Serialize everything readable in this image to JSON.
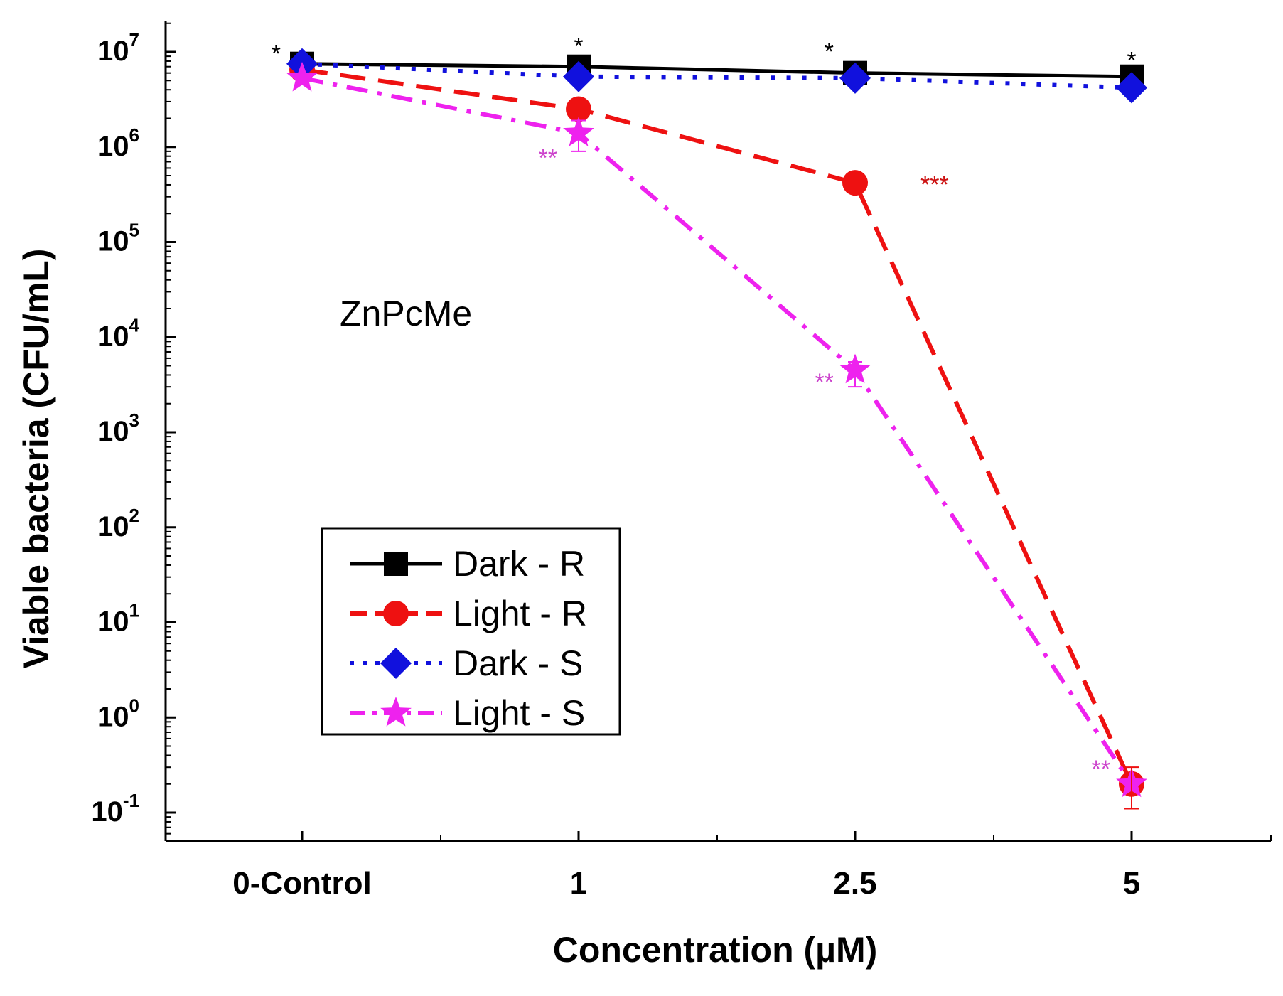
{
  "chart_data": {
    "type": "line",
    "annotation": "ZnPcMe",
    "xlabel": "Concentration (µM)",
    "ylabel": "Viable bacteria (CFU/mL)",
    "y_scale": "log",
    "ylim": [
      0.05,
      20000000
    ],
    "categories": [
      "0-Control",
      "1",
      "2.5",
      "5"
    ],
    "y_tick_labels": [
      {
        "base": "10",
        "exp": "-1",
        "value": 0.1
      },
      {
        "base": "10",
        "exp": "0",
        "value": 1
      },
      {
        "base": "10",
        "exp": "1",
        "value": 10
      },
      {
        "base": "10",
        "exp": "2",
        "value": 100
      },
      {
        "base": "10",
        "exp": "3",
        "value": 1000
      },
      {
        "base": "10",
        "exp": "4",
        "value": 10000
      },
      {
        "base": "10",
        "exp": "5",
        "value": 100000
      },
      {
        "base": "10",
        "exp": "6",
        "value": 1000000
      },
      {
        "base": "10",
        "exp": "7",
        "value": 10000000
      }
    ],
    "legend_position": "lower-left",
    "series": [
      {
        "name": "Dark - R",
        "color": "#000000",
        "marker": "square",
        "line": "solid",
        "values": [
          7500000,
          7000000,
          6000000,
          5500000
        ]
      },
      {
        "name": "Light - R",
        "color": "#ee1111",
        "marker": "circle",
        "line": "dashed",
        "values": [
          6500000,
          2500000,
          420000,
          0.2
        ]
      },
      {
        "name": "Dark - S",
        "color": "#1111dd",
        "marker": "diamond",
        "line": "dotted",
        "values": [
          7500000,
          5500000,
          5300000,
          4200000
        ]
      },
      {
        "name": "Light - S",
        "color": "#ee22ee",
        "marker": "star",
        "line": "dash-dot",
        "values": [
          5300000,
          1400000,
          4500,
          0.2
        ]
      }
    ],
    "error_bars": [
      {
        "series": "Light - S",
        "category": "1",
        "low": 900000,
        "high": 1900000
      },
      {
        "series": "Light - S",
        "category": "2.5",
        "low": 3000,
        "high": 5500
      },
      {
        "series": "Light - R",
        "category": "5",
        "low": 0.11,
        "high": 0.3
      }
    ],
    "significance": [
      {
        "label": "*",
        "category": "0-Control",
        "value": 10000000,
        "color": "#000000",
        "side": "left"
      },
      {
        "label": "*",
        "category": "1",
        "value": 12000000,
        "color": "#000000",
        "side": "center"
      },
      {
        "label": "*",
        "category": "2.5",
        "value": 10500000,
        "color": "#000000",
        "side": "left"
      },
      {
        "label": "*",
        "category": "5",
        "value": 8500000,
        "color": "#000000",
        "side": "center"
      },
      {
        "label": "**",
        "category": "1",
        "value": 800000,
        "color": "#cc44cc",
        "side": "left"
      },
      {
        "label": "***",
        "category": "2.5",
        "value": 420000,
        "color": "#cc1111",
        "side": "right"
      },
      {
        "label": "**",
        "category": "2.5",
        "value": 3500,
        "color": "#cc44cc",
        "side": "left"
      },
      {
        "label": "**",
        "category": "5",
        "value": 0.3,
        "color": "#cc44cc",
        "side": "left"
      }
    ]
  }
}
